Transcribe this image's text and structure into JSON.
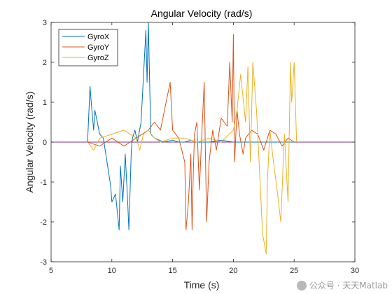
{
  "chart_data": {
    "type": "line",
    "title": "Angular Velocity (rad/s)",
    "xlabel": "Time (s)",
    "ylabel": "Angular Velocity (rad/s)",
    "xlim": [
      5,
      30
    ],
    "ylim": [
      -3,
      3
    ],
    "xticks": [
      "5",
      "10",
      "15",
      "20",
      "25",
      "30"
    ],
    "yticks": [
      "-3",
      "-2",
      "-1",
      "0",
      "1",
      "2",
      "3"
    ],
    "legend_position": "top-left",
    "grid": false,
    "colors": {
      "GyroX": "#0072BD",
      "GyroY": "#D95319",
      "GyroZ": "#EDB120",
      "zero_line": "#7E2F8E"
    },
    "series": [
      {
        "name": "GyroX",
        "x": [
          8.0,
          8.2,
          8.3,
          8.5,
          8.6,
          8.8,
          9.0,
          9.3,
          9.6,
          9.9,
          10.0,
          10.3,
          10.6,
          10.7,
          10.9,
          11.1,
          11.3,
          11.4,
          11.6,
          11.7,
          11.9,
          12.1,
          12.4,
          12.8,
          12.9,
          13.0,
          13.2,
          13.5,
          13.9,
          14.3,
          15.0,
          15.5,
          16.0,
          16.5,
          17.0,
          18.0,
          19.0,
          20.0,
          21.0,
          22.0,
          23.0,
          24.0,
          25.0
        ],
        "y": [
          0.0,
          1.4,
          1.0,
          0.3,
          0.8,
          0.5,
          0.2,
          0.1,
          -0.5,
          -1.1,
          -1.5,
          -1.3,
          -2.2,
          -0.6,
          -1.5,
          -0.3,
          -1.5,
          -2.2,
          -0.2,
          0.1,
          0.3,
          0.0,
          0.5,
          2.8,
          1.5,
          3.0,
          0.2,
          0.1,
          0.05,
          0.0,
          0.05,
          0.0,
          0.0,
          0.05,
          0.0,
          0.0,
          0.05,
          0.0,
          0.0,
          0.0,
          0.0,
          0.0,
          0.0
        ]
      },
      {
        "name": "GyroY",
        "x": [
          8.0,
          9.0,
          10.0,
          11.0,
          12.0,
          13.0,
          13.5,
          14.0,
          14.8,
          15.0,
          15.5,
          16.0,
          16.1,
          16.3,
          16.5,
          16.6,
          16.7,
          16.8,
          17.0,
          17.2,
          17.4,
          17.6,
          17.8,
          18.0,
          18.3,
          18.6,
          19.0,
          19.5,
          19.7,
          19.9,
          20.0,
          20.1,
          20.3,
          20.5,
          20.8,
          21.0,
          21.5,
          22.0,
          22.5,
          23.0,
          23.5,
          24.0,
          24.5,
          25.0
        ],
        "y": [
          0.0,
          -0.1,
          0.1,
          -0.1,
          0.1,
          0.3,
          0.5,
          0.3,
          1.5,
          0.3,
          0.1,
          -0.5,
          -2.2,
          -1.5,
          -0.3,
          -2.2,
          -0.8,
          0.2,
          0.5,
          -1.2,
          0.2,
          1.5,
          -2.0,
          -0.5,
          0.3,
          -0.2,
          0.6,
          0.4,
          2.0,
          0.5,
          2.7,
          -0.5,
          0.8,
          0.2,
          -0.3,
          0.1,
          0.3,
          0.2,
          -0.2,
          0.3,
          0.2,
          -0.1,
          0.1,
          0.0
        ]
      },
      {
        "name": "GyroZ",
        "x": [
          8.0,
          8.5,
          9.0,
          10.0,
          11.0,
          12.0,
          12.3,
          12.6,
          13.0,
          13.5,
          14.0,
          15.0,
          16.0,
          17.0,
          18.0,
          19.0,
          20.0,
          20.3,
          20.6,
          21.0,
          21.2,
          21.4,
          21.6,
          21.9,
          22.1,
          22.4,
          22.7,
          22.8,
          23.0,
          23.3,
          23.6,
          23.9,
          24.2,
          24.5,
          24.7,
          24.8,
          25.0,
          25.2
        ],
        "y": [
          0.0,
          -0.2,
          0.1,
          0.2,
          0.3,
          0.1,
          -0.2,
          0.2,
          0.3,
          0.1,
          0.0,
          0.1,
          0.1,
          0.0,
          0.1,
          0.0,
          0.3,
          0.8,
          1.7,
          0.5,
          1.9,
          -0.5,
          2.0,
          0.8,
          -0.4,
          -2.3,
          -2.8,
          -1.0,
          0.3,
          -0.5,
          -1.2,
          -2.0,
          0.2,
          -1.5,
          2.0,
          1.0,
          2.0,
          0.0
        ]
      }
    ]
  },
  "watermark": {
    "text": "公众号 · 天天Matlab",
    "icon": "wechat-icon"
  }
}
